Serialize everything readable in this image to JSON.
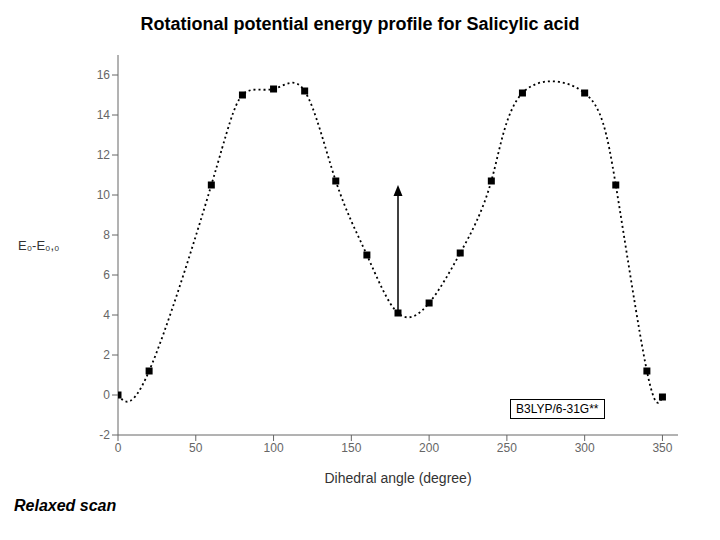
{
  "chart_data": {
    "type": "line",
    "title": "Rotational potential energy profile for Salicylic acid",
    "xlabel": "Dihedral angle (degree)",
    "ylabel": "E₀-E₀,₀",
    "x": [
      0,
      20,
      60,
      80,
      100,
      120,
      140,
      160,
      180,
      200,
      220,
      240,
      260,
      300,
      320,
      340,
      350
    ],
    "values": [
      0.0,
      1.2,
      10.5,
      15.0,
      15.3,
      15.2,
      10.7,
      7.0,
      4.1,
      4.6,
      7.1,
      10.7,
      15.1,
      15.1,
      10.5,
      1.2,
      -0.1
    ],
    "color": "black",
    "marker": "square",
    "line_style": "dotted",
    "xlim": [
      0,
      360
    ],
    "ylim": [
      -2,
      17
    ],
    "xticks": [
      0,
      50,
      100,
      150,
      200,
      250,
      300,
      350
    ],
    "yticks": [
      -2,
      0,
      2,
      4,
      6,
      8,
      10,
      12,
      14,
      16
    ],
    "grid": false,
    "annotations": [
      "B3LYP/6-31G**",
      "Relaxed scan"
    ],
    "arrow": {
      "x": 180,
      "from": 4.1,
      "to": 10.5
    }
  }
}
